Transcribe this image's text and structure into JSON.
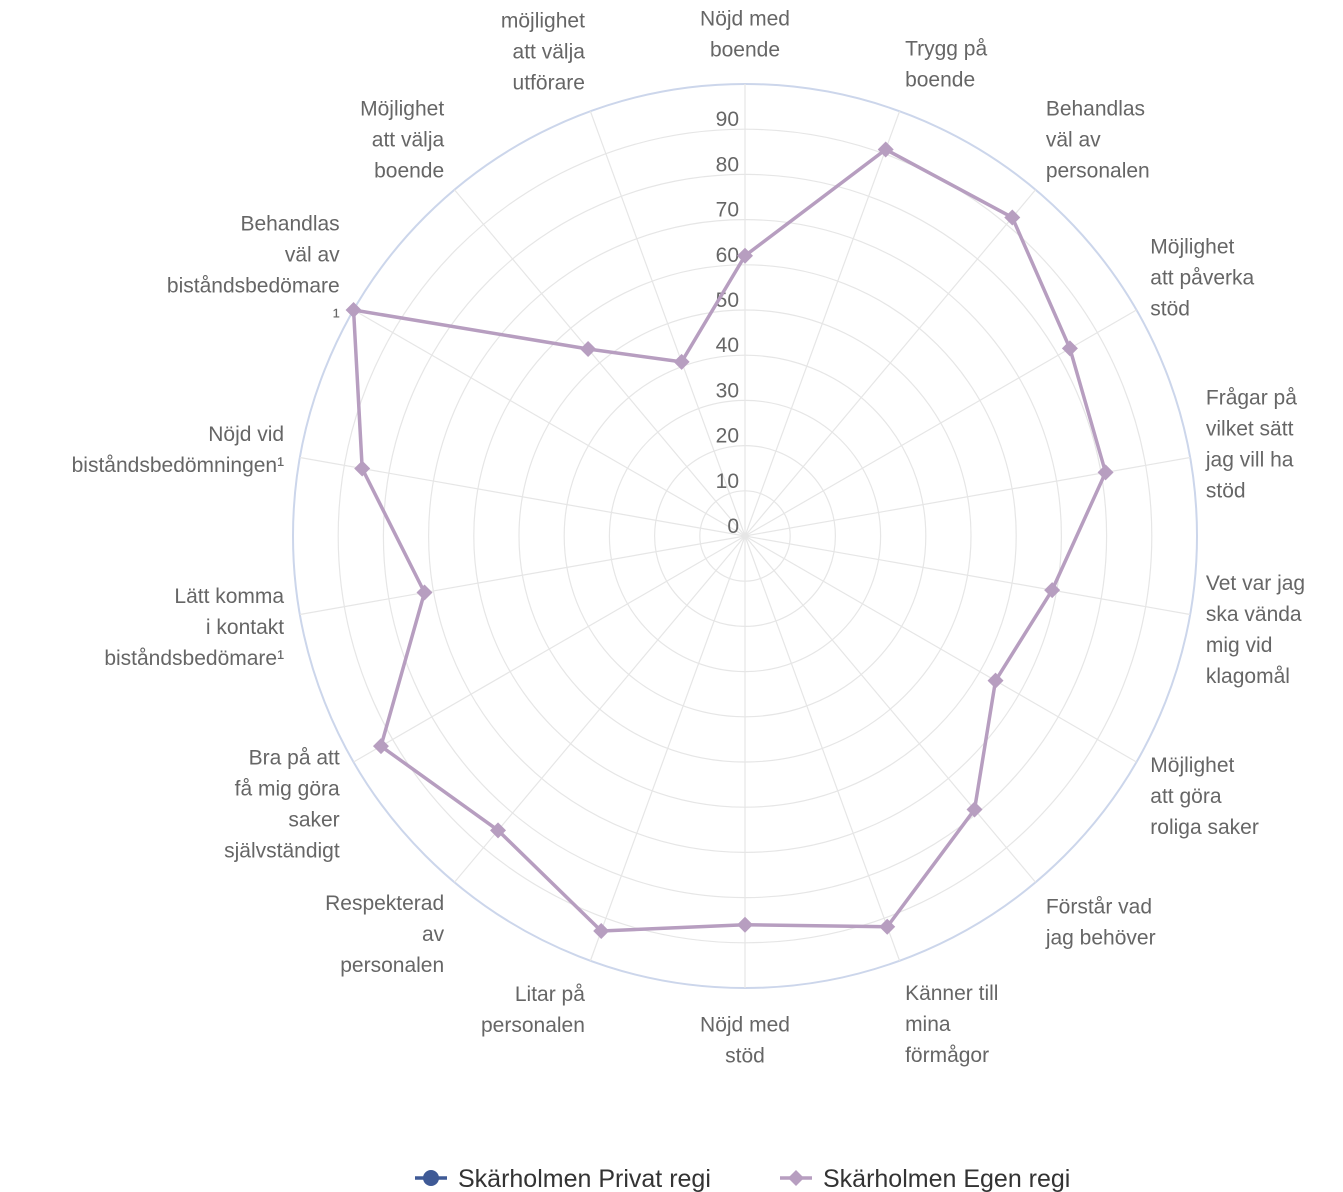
{
  "chart_data": {
    "type": "radar",
    "categories": [
      "Nöjd med\nboende",
      "Trygg på\nboende",
      "Behandlas\nväl av\npersonalen",
      "Möjlighet\natt påverka\nstöd",
      "Frågar på\nvilket sätt\njag vill ha\nstöd",
      "Vet var jag\nska vända\nmig vid\nklagomål",
      "Möjlighet\natt göra\nroliga saker",
      "Förstår vad\njag behöver",
      "Känner till\nmina\nförmågor",
      "Nöjd med\nstöd",
      "Litar på\npersonalen",
      "Respekterad\nav\npersonalen",
      "Bra på att\nfå mig göra\nsaker\nsjälvständigt",
      "Lätt komma\ni kontakt\nbiståndsbedömare¹",
      "Nöjd vid\nbiståndsbedömningen¹",
      "Behandlas\nväl av\nbiståndsbedömare\n¹",
      "Möjlighet\natt välja\nboende",
      "Information\nom\nmöjlighet\natt välja\nutförare"
    ],
    "series": [
      {
        "name": "Skärholmen Privat regi",
        "color": "#3f5a96",
        "values": [
          null,
          null,
          null,
          null,
          null,
          null,
          null,
          null,
          null,
          null,
          null,
          null,
          null,
          null,
          null,
          null,
          null,
          null
        ]
      },
      {
        "name": "Skärholmen Egen regi",
        "color": "#b79ec0",
        "values": [
          62,
          91,
          92,
          83,
          81,
          69,
          64,
          79,
          92,
          86,
          93,
          85,
          93,
          72,
          86,
          100,
          54,
          41
        ]
      }
    ],
    "ylim": [
      0,
      100
    ],
    "yticks": [
      0,
      10,
      20,
      30,
      40,
      50,
      60,
      70,
      80,
      90
    ],
    "grid": true
  }
}
